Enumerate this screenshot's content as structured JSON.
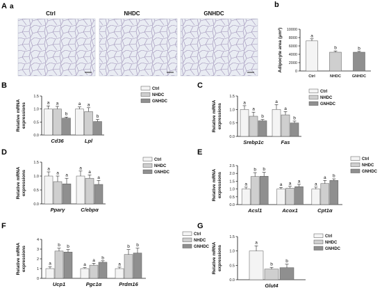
{
  "figure": {
    "panel_letter_A": "A",
    "panel_letter_a": "a",
    "panel_letter_b": "b",
    "groups": [
      "Ctrl",
      "NHDC",
      "GNHDC"
    ],
    "group_colors": [
      "#f4f4f4",
      "#cfcfcf",
      "#8f8f8f"
    ],
    "histology_image_titles": [
      "Ctrl",
      "NHDC",
      "GNHDC"
    ]
  },
  "chart_data": [
    {
      "id": "b",
      "letter": "b",
      "type": "bar",
      "categories": [
        "Ctrl",
        "NHDC",
        "GNHDC"
      ],
      "values": [
        7200,
        4500,
        4500
      ],
      "errors": [
        500,
        300,
        200
      ],
      "sig": [
        "a",
        "b",
        "b"
      ],
      "ylabel": "Adipocyte area (μm²)",
      "ylim": [
        0,
        10000
      ],
      "yticks": [
        "0",
        "2000",
        "4000",
        "6000",
        "8000",
        "10000"
      ],
      "legend": false,
      "grid": false
    },
    {
      "id": "B",
      "letter": "B",
      "type": "bar",
      "categories": [
        "Cd36",
        "Lpl"
      ],
      "series": [
        {
          "name": "Ctrl",
          "values": [
            1.0,
            1.0
          ],
          "errors": [
            0.12,
            0.08
          ]
        },
        {
          "name": "NHDC",
          "values": [
            1.0,
            0.9
          ],
          "errors": [
            0.1,
            0.15
          ]
        },
        {
          "name": "GNHDC",
          "values": [
            0.65,
            0.52
          ],
          "errors": [
            0.04,
            0.08
          ]
        }
      ],
      "sig": [
        [
          "a",
          "a",
          "b"
        ],
        [
          "a",
          "a",
          "b"
        ]
      ],
      "ylabel": "Relative mRNA expressions",
      "ylim": [
        0,
        1.5
      ],
      "yticks": [
        "0.0",
        "0.5",
        "1.0",
        "1.5"
      ],
      "legend": true,
      "grid": false
    },
    {
      "id": "C",
      "letter": "C",
      "type": "bar",
      "categories": [
        "Srebp1c",
        "Fas"
      ],
      "series": [
        {
          "name": "Ctrl",
          "values": [
            1.0,
            1.0
          ],
          "errors": [
            0.14,
            0.18
          ]
        },
        {
          "name": "NHDC",
          "values": [
            0.75,
            0.8
          ],
          "errors": [
            0.15,
            0.12
          ]
        },
        {
          "name": "GNHDC",
          "values": [
            0.58,
            0.5
          ],
          "errors": [
            0.05,
            0.07
          ]
        }
      ],
      "sig": [
        [
          "a",
          "a",
          "b"
        ],
        [
          "a",
          "a",
          "b"
        ]
      ],
      "ylabel": "Relative mRNA expressions",
      "ylim": [
        0,
        1.5
      ],
      "yticks": [
        "0.0",
        "0.5",
        "1.0",
        "1.5"
      ],
      "legend": true,
      "grid": false
    },
    {
      "id": "D",
      "letter": "D",
      "type": "bar",
      "categories": [
        "Pparγ",
        "C/ebpα"
      ],
      "series": [
        {
          "name": "Ctrl",
          "values": [
            1.0,
            1.0
          ],
          "errors": [
            0.15,
            0.18
          ]
        },
        {
          "name": "NHDC",
          "values": [
            0.8,
            0.92
          ],
          "errors": [
            0.2,
            0.12
          ]
        },
        {
          "name": "GNHDC",
          "values": [
            0.72,
            0.7
          ],
          "errors": [
            0.2,
            0.14
          ]
        }
      ],
      "sig": [
        [
          "a",
          "a",
          "a"
        ],
        [
          "a",
          "a",
          "a"
        ]
      ],
      "ylabel": "Relative mRNA expressions",
      "ylim": [
        0,
        1.5
      ],
      "yticks": [
        "0.0",
        "0.5",
        "1.0",
        "1.5"
      ],
      "legend": true,
      "grid": false
    },
    {
      "id": "E",
      "letter": "E",
      "type": "bar",
      "categories": [
        "Acsl1",
        "Acox1",
        "Cpt1α"
      ],
      "series": [
        {
          "name": "Ctrl",
          "values": [
            1.0,
            1.0,
            1.0
          ],
          "errors": [
            0.12,
            0.1,
            0.12
          ]
        },
        {
          "name": "NHDC",
          "values": [
            1.8,
            1.05,
            1.35
          ],
          "errors": [
            0.25,
            0.12,
            0.2
          ]
        },
        {
          "name": "GNHDC",
          "values": [
            1.82,
            1.15,
            1.55
          ],
          "errors": [
            0.25,
            0.15,
            0.1
          ]
        }
      ],
      "sig": [
        [
          "a",
          "b",
          "b"
        ],
        [
          "a",
          "a",
          "a"
        ],
        [
          "a",
          "a",
          "b"
        ]
      ],
      "ylabel": "Relative mRNA expressions",
      "ylim": [
        0,
        2.5
      ],
      "yticks": [
        "0.0",
        "0.5",
        "1.0",
        "1.5",
        "2.0",
        "2.5"
      ],
      "legend": true,
      "grid": false
    },
    {
      "id": "F",
      "letter": "F",
      "type": "bar",
      "categories": [
        "Ucp1",
        "Pgc1α",
        "Prdm16"
      ],
      "series": [
        {
          "name": "Ctrl",
          "values": [
            1.0,
            1.0,
            1.0
          ],
          "errors": [
            0.2,
            0.1,
            0.15
          ]
        },
        {
          "name": "NHDC",
          "values": [
            2.8,
            1.35,
            2.45
          ],
          "errors": [
            0.3,
            0.2,
            0.5
          ]
        },
        {
          "name": "GNHDC",
          "values": [
            2.7,
            1.65,
            2.6
          ],
          "errors": [
            0.25,
            0.15,
            0.5
          ]
        }
      ],
      "sig": [
        [
          "a",
          "b",
          "b"
        ],
        [
          "a",
          "a",
          "b"
        ],
        [
          "a",
          "b",
          "b"
        ]
      ],
      "ylabel": "Relative mRNA expressions",
      "ylim": [
        0,
        4
      ],
      "yticks": [
        "0",
        "1",
        "2",
        "3",
        "4"
      ],
      "legend": true,
      "grid": false
    },
    {
      "id": "G",
      "letter": "G",
      "type": "bar",
      "categories": [
        "Glut4"
      ],
      "series": [
        {
          "name": "Ctrl",
          "values": [
            1.0
          ],
          "errors": [
            0.18
          ]
        },
        {
          "name": "NHDC",
          "values": [
            0.37
          ],
          "errors": [
            0.06
          ]
        },
        {
          "name": "GNHDC",
          "values": [
            0.42
          ],
          "errors": [
            0.12
          ]
        }
      ],
      "sig": [
        [
          "a",
          "b",
          "b"
        ]
      ],
      "ylabel": "Relative mRNA expressions",
      "ylim": [
        0,
        1.5
      ],
      "yticks": [
        "0.0",
        "0.5",
        "1.0",
        "1.5"
      ],
      "legend": true,
      "grid": false
    }
  ]
}
